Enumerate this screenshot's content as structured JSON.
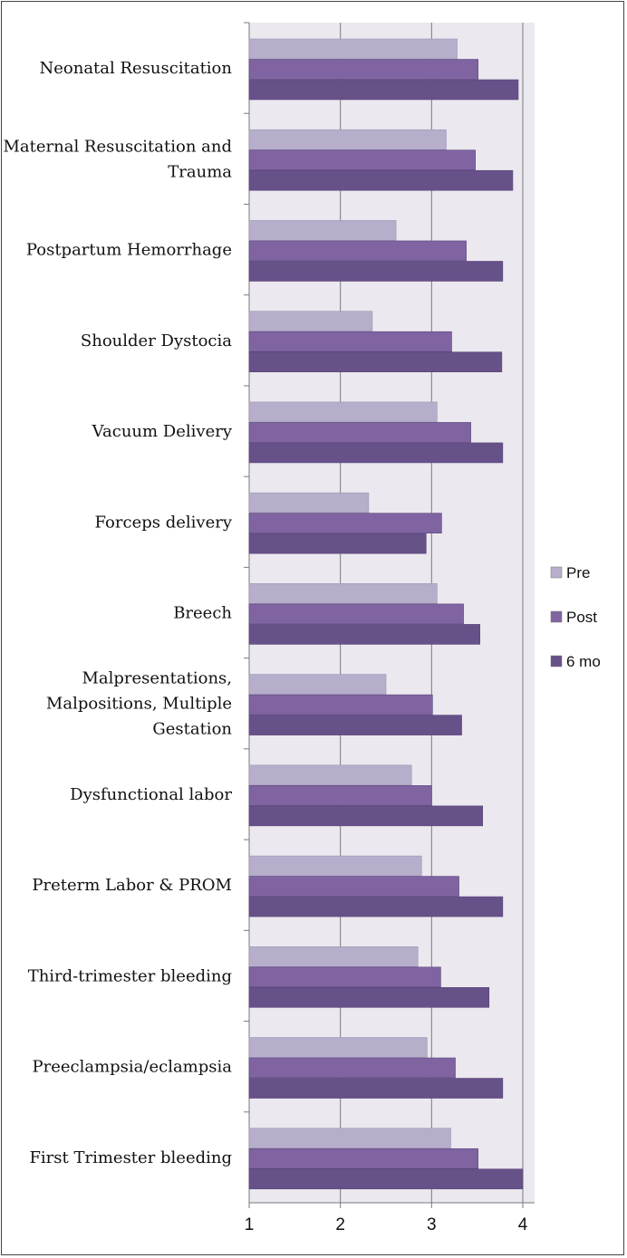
{
  "chart_data": {
    "type": "bar",
    "orientation": "horizontal",
    "title": "",
    "xlabel": "",
    "ylabel": "",
    "xlim": [
      1,
      4
    ],
    "xticks": [
      "1",
      "2",
      "3",
      "4"
    ],
    "grid": true,
    "legend_position": "right",
    "categories": [
      [
        "Neonatal Resuscitation"
      ],
      [
        "Maternal Resuscitation and",
        "Trauma"
      ],
      [
        "Postpartum Hemorrhage"
      ],
      [
        "Shoulder Dystocia"
      ],
      [
        "Vacuum Delivery"
      ],
      [
        "Forceps delivery"
      ],
      [
        "Breech"
      ],
      [
        "Malpresentations,",
        "Malpositions, Multiple",
        "Gestation"
      ],
      [
        "Dysfunctional labor"
      ],
      [
        "Preterm Labor & PROM"
      ],
      [
        "Third-trimester bleeding"
      ],
      [
        "Preeclampsia/eclampsia"
      ],
      [
        "First Trimester bleeding"
      ]
    ],
    "series": [
      {
        "name": "Pre",
        "color": "#b7aecb",
        "values": [
          3.28,
          3.16,
          2.61,
          2.35,
          3.06,
          2.31,
          3.06,
          2.5,
          2.78,
          2.89,
          2.85,
          2.95,
          3.21
        ]
      },
      {
        "name": "Post",
        "color": "#8064a2",
        "values": [
          3.51,
          3.48,
          3.38,
          3.22,
          3.43,
          3.11,
          3.35,
          3.01,
          3.0,
          3.3,
          3.1,
          3.26,
          3.51
        ]
      },
      {
        "name": "6 mo",
        "color": "#675189",
        "values": [
          3.95,
          3.89,
          3.78,
          3.77,
          3.78,
          2.94,
          3.53,
          3.33,
          3.56,
          3.78,
          3.63,
          3.78,
          4.0
        ]
      }
    ]
  }
}
